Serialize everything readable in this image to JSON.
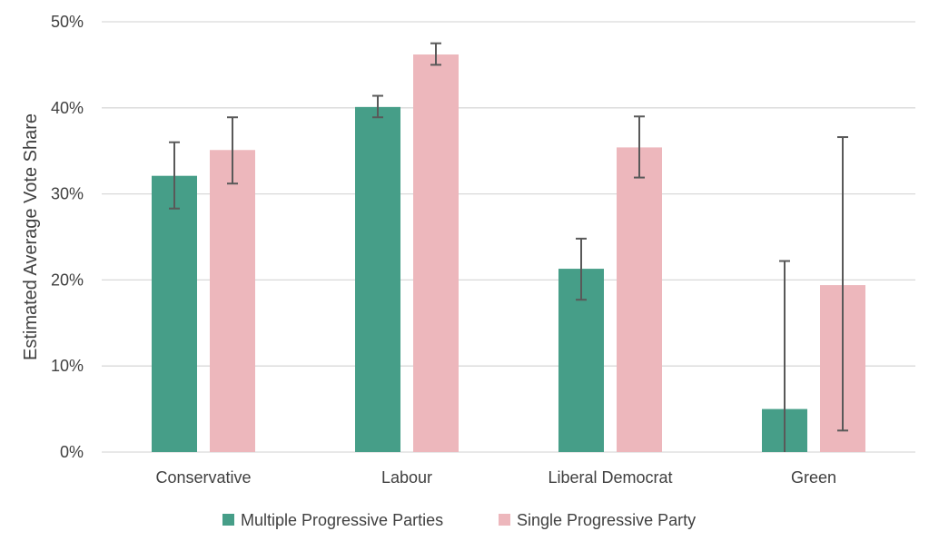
{
  "chart_data": {
    "type": "bar",
    "title": "",
    "xlabel": "",
    "ylabel": "Estimated Average Vote Share",
    "ylim": [
      0,
      0.5
    ],
    "yticks": [
      0,
      0.1,
      0.2,
      0.3,
      0.4,
      0.5
    ],
    "ytick_labels": [
      "0%",
      "10%",
      "20%",
      "30%",
      "40%",
      "50%"
    ],
    "grid": "horizontal",
    "legend_position": "bottom",
    "categories": [
      "Conservative",
      "Labour",
      "Liberal Democrat",
      "Green"
    ],
    "series": [
      {
        "name": "Multiple Progressive Parties",
        "color": "#469E88",
        "values": [
          0.321,
          0.401,
          0.213,
          0.05
        ],
        "error_low": [
          0.283,
          0.389,
          0.177,
          0.0
        ],
        "error_high": [
          0.36,
          0.414,
          0.248,
          0.222
        ]
      },
      {
        "name": "Single Progressive Party",
        "color": "#EDB7BC",
        "values": [
          0.351,
          0.462,
          0.354,
          0.194
        ],
        "error_low": [
          0.312,
          0.45,
          0.319,
          0.025
        ],
        "error_high": [
          0.389,
          0.475,
          0.39,
          0.366
        ]
      }
    ],
    "error_bar_color": "#595959",
    "grid_color": "#D9D9D9"
  }
}
